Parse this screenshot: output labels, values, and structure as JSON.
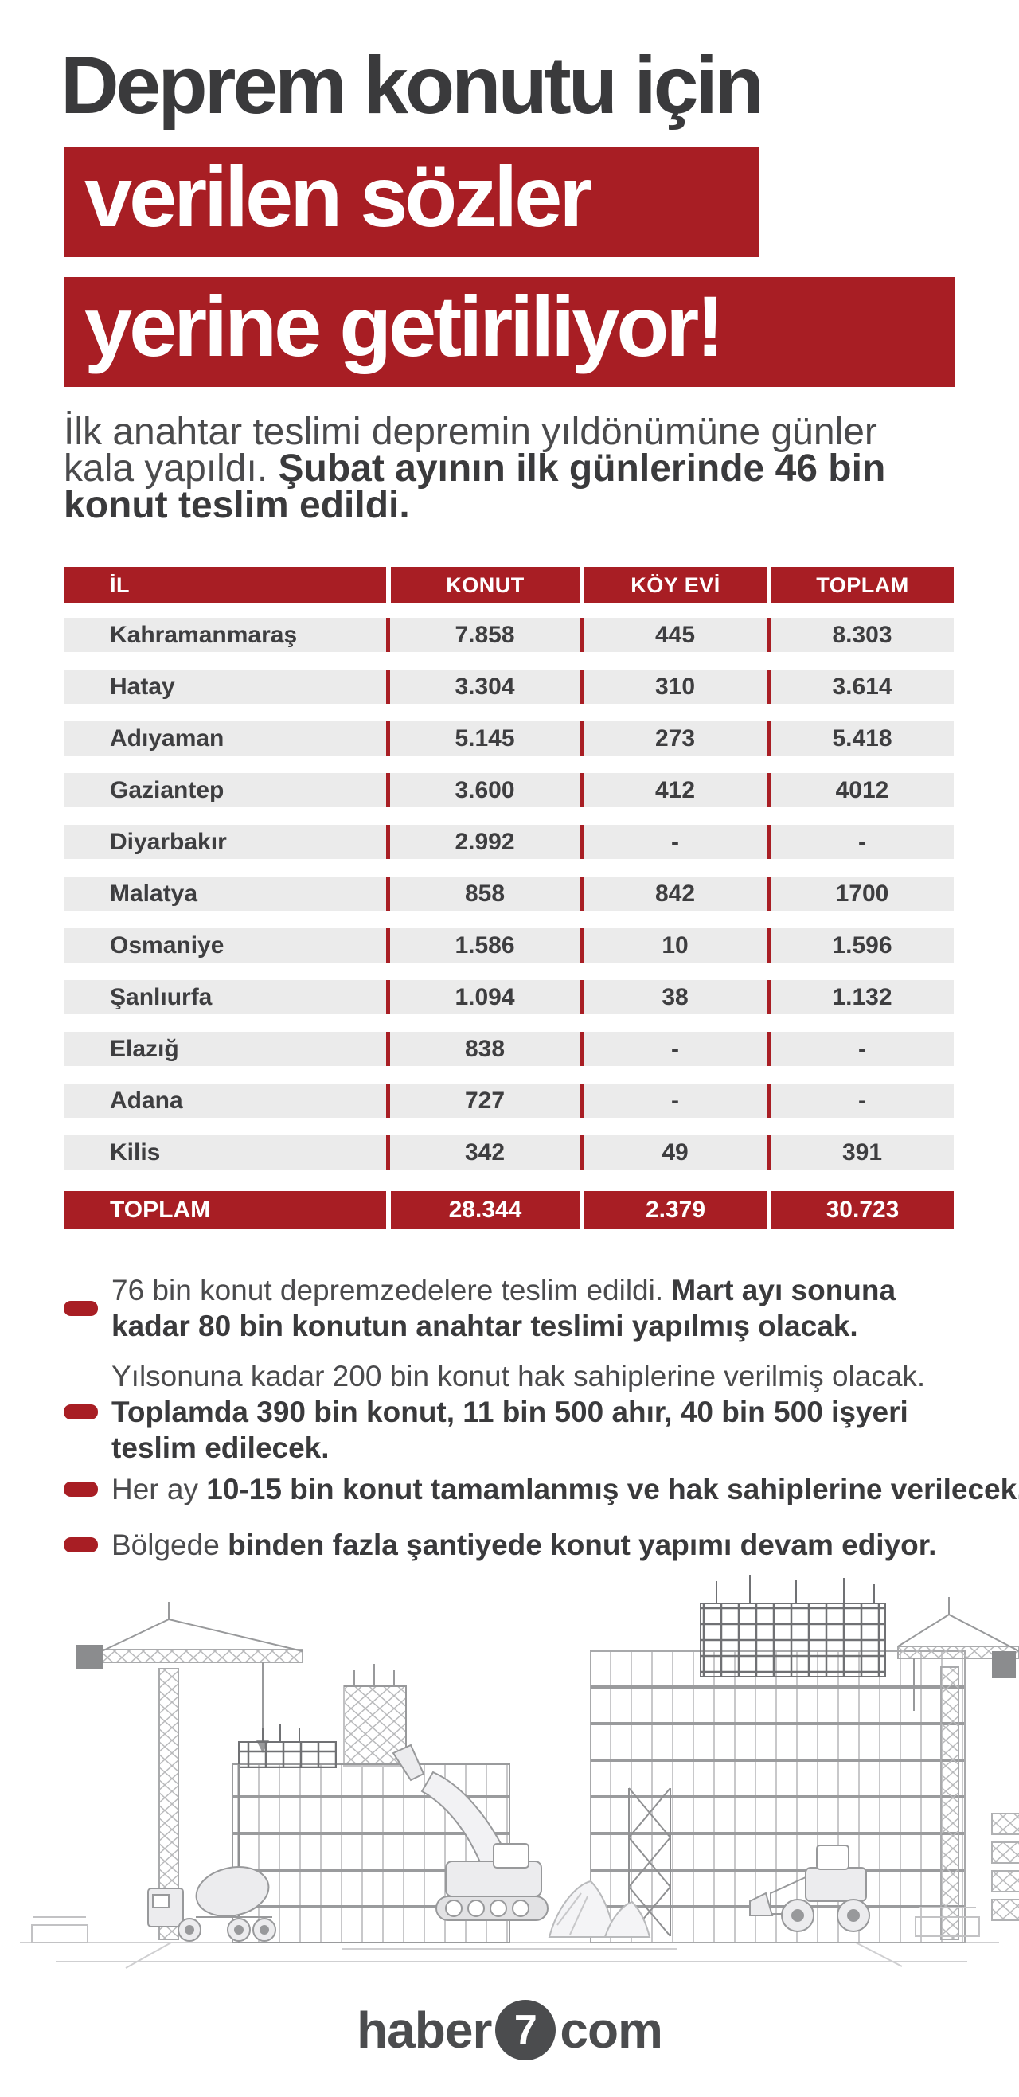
{
  "colors": {
    "red": "#a81e24",
    "dark_text": "#3a3a3c",
    "gray_text": "#4b4b4d",
    "row_bg": "#ebebeb",
    "logo_gray": "#4b4c4e"
  },
  "header": {
    "title_line": "Deprem konutu için",
    "highlight_line1": "verilen sözler",
    "highlight_line2": "yerine getiriliyor!"
  },
  "intro": {
    "lines": [
      [
        {
          "text": "İlk anahtar teslimi depremin yıldönümüne günler",
          "bold": false
        }
      ],
      [
        {
          "text": "kala yapıldı. ",
          "bold": false
        },
        {
          "text": "Şubat ayının ilk günlerinde 46 bin",
          "bold": true
        }
      ],
      [
        {
          "text": "konut teslim edildi.",
          "bold": true
        }
      ]
    ]
  },
  "table": {
    "headers": [
      "İL",
      "KONUT",
      "KÖY EVİ",
      "TOPLAM"
    ],
    "rows": [
      [
        "Kahramanmaraş",
        "7.858",
        "445",
        "8.303"
      ],
      [
        "Hatay",
        "3.304",
        "310",
        "3.614"
      ],
      [
        "Adıyaman",
        "5.145",
        "273",
        "5.418"
      ],
      [
        "Gaziantep",
        "3.600",
        "412",
        "4012"
      ],
      [
        "Diyarbakır",
        "2.992",
        "-",
        "-"
      ],
      [
        "Malatya",
        "858",
        "842",
        "1700"
      ],
      [
        "Osmaniye",
        "1.586",
        "10",
        "1.596"
      ],
      [
        "Şanlıurfa",
        "1.094",
        "38",
        "1.132"
      ],
      [
        "Elazığ",
        "838",
        "-",
        "-"
      ],
      [
        "Adana",
        "727",
        "-",
        "-"
      ],
      [
        "Kilis",
        "342",
        "49",
        "391"
      ]
    ],
    "total": [
      "TOPLAM",
      "28.344",
      "2.379",
      "30.723"
    ]
  },
  "bullets": [
    {
      "lines": [
        [
          {
            "text": "76 bin konut depremzedelere teslim edildi. ",
            "bold": false
          },
          {
            "text": "Mart ayı sonuna",
            "bold": true
          }
        ],
        [
          {
            "text": "kadar 80 bin konutun anahtar teslimi yapılmış olacak.",
            "bold": true
          }
        ]
      ]
    },
    {
      "lines": [
        [
          {
            "text": "Yılsonuna kadar 200 bin konut hak sahiplerine verilmiş olacak.",
            "bold": false
          }
        ],
        [
          {
            "text": "Toplamda 390 bin konut, 11 bin 500 ahır, 40 bin 500 işyeri",
            "bold": true
          }
        ],
        [
          {
            "text": "teslim edilecek.",
            "bold": true
          }
        ]
      ]
    },
    {
      "lines": [
        [
          {
            "text": "Her ay ",
            "bold": false
          },
          {
            "text": "10-15 bin konut tamamlanmış ve hak sahiplerine verilecek.",
            "bold": true
          }
        ]
      ]
    },
    {
      "lines": [
        [
          {
            "text": "Bölgede ",
            "bold": false
          },
          {
            "text": "binden fazla şantiyede konut yapımı devam ediyor.",
            "bold": true
          }
        ]
      ]
    }
  ],
  "footer": {
    "logo_prefix": "haber",
    "logo_number": "7",
    "logo_suffix": "com"
  },
  "chart_data": {
    "type": "table",
    "title": "Deprem konutu için verilen sözler yerine getiriliyor!",
    "subtitle": "İlk anahtar teslimi depremin yıldönümüne günler kala yapıldı. Şubat ayının ilk günlerinde 46 bin konut teslim edildi.",
    "columns": [
      "İL",
      "KONUT",
      "KÖY EVİ",
      "TOPLAM"
    ],
    "rows": [
      [
        "Kahramanmaraş",
        "7.858",
        "445",
        "8.303"
      ],
      [
        "Hatay",
        "3.304",
        "310",
        "3.614"
      ],
      [
        "Adıyaman",
        "5.145",
        "273",
        "5.418"
      ],
      [
        "Gaziantep",
        "3.600",
        "412",
        "4012"
      ],
      [
        "Diyarbakır",
        "2.992",
        "-",
        "-"
      ],
      [
        "Malatya",
        "858",
        "842",
        "1700"
      ],
      [
        "Osmaniye",
        "1.586",
        "10",
        "1.596"
      ],
      [
        "Şanlıurfa",
        "1.094",
        "38",
        "1.132"
      ],
      [
        "Elazığ",
        "838",
        "-",
        "-"
      ],
      [
        "Adana",
        "727",
        "-",
        "-"
      ],
      [
        "Kilis",
        "342",
        "49",
        "391"
      ]
    ],
    "total_row": [
      "TOPLAM",
      "28.344",
      "2.379",
      "30.723"
    ],
    "notes": [
      "76 bin konut depremzedelere teslim edildi. Mart ayı sonuna kadar 80 bin konutun anahtar teslimi yapılmış olacak.",
      "Yılsonuna kadar 200 bin konut hak sahiplerine verilmiş olacak. Toplamda 390 bin konut, 11 bin 500 ahır, 40 bin 500 işyeri teslim edilecek.",
      "Her ay 10-15 bin konut tamamlanmış ve hak sahiplerine verilecek.",
      "Bölgede binden fazla şantiyede konut yapımı devam ediyor."
    ]
  }
}
